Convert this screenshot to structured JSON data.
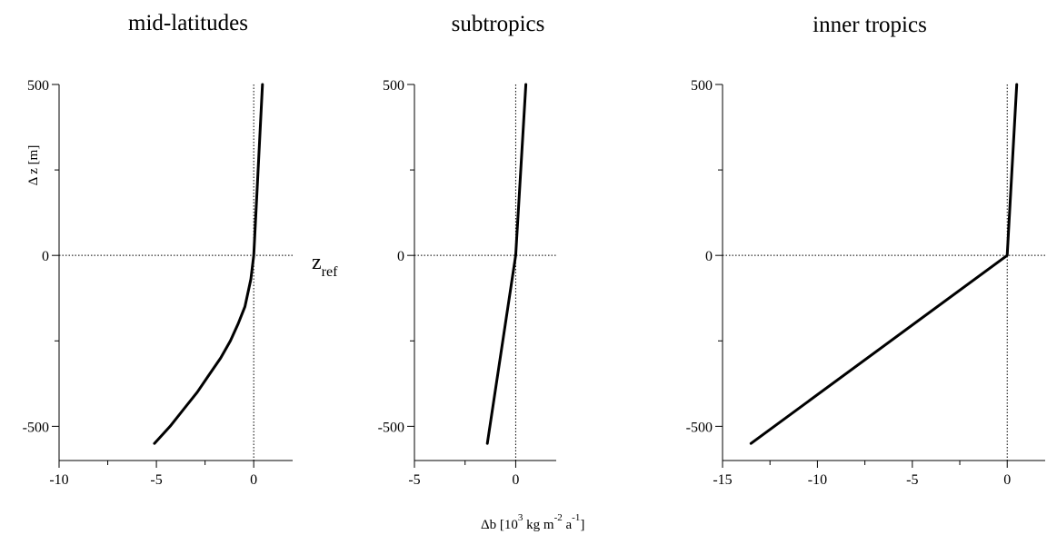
{
  "chart_data": [
    {
      "type": "line",
      "title": "mid-latitudes",
      "ylabel": "Δ z [m]",
      "xlim": [
        -10,
        2
      ],
      "ylim": [
        -600,
        500
      ],
      "xticks": [
        -10,
        -5,
        0
      ],
      "yticks": [
        -500,
        0,
        500
      ],
      "reference_lines": {
        "x": 0,
        "y": 0
      },
      "series": [
        {
          "x": [
            -5.1,
            -4.3,
            -3.6,
            -2.9,
            -2.3,
            -1.7,
            -1.2,
            -0.8,
            -0.45,
            -0.15,
            0,
            0.45
          ],
          "y": [
            -550,
            -500,
            -450,
            -400,
            -350,
            -300,
            -250,
            -200,
            -150,
            -70,
            0,
            500
          ]
        }
      ]
    },
    {
      "type": "line",
      "title": "subtropics",
      "xlim": [
        -5,
        2
      ],
      "ylim": [
        -600,
        500
      ],
      "xticks": [
        -5,
        0
      ],
      "yticks": [
        -500,
        0,
        500
      ],
      "reference_lines": {
        "x": 0,
        "y": 0
      },
      "series": [
        {
          "x": [
            -1.4,
            0,
            0.5
          ],
          "y": [
            -550,
            0,
            500
          ]
        }
      ]
    },
    {
      "type": "line",
      "title": "inner tropics",
      "xlim": [
        -15,
        2
      ],
      "ylim": [
        -600,
        500
      ],
      "xticks": [
        -15,
        -10,
        -5,
        0
      ],
      "yticks": [
        -500,
        0,
        500
      ],
      "reference_lines": {
        "x": 0,
        "y": 0
      },
      "series": [
        {
          "x": [
            -13.5,
            0,
            0.5
          ],
          "y": [
            -550,
            0,
            500
          ]
        }
      ]
    }
  ],
  "annotations": {
    "zref_main": "z",
    "zref_sub": "ref",
    "xlabel_parts": [
      "Δb [10",
      "3",
      " kg m",
      "-2",
      " a",
      "-1",
      "]"
    ]
  }
}
